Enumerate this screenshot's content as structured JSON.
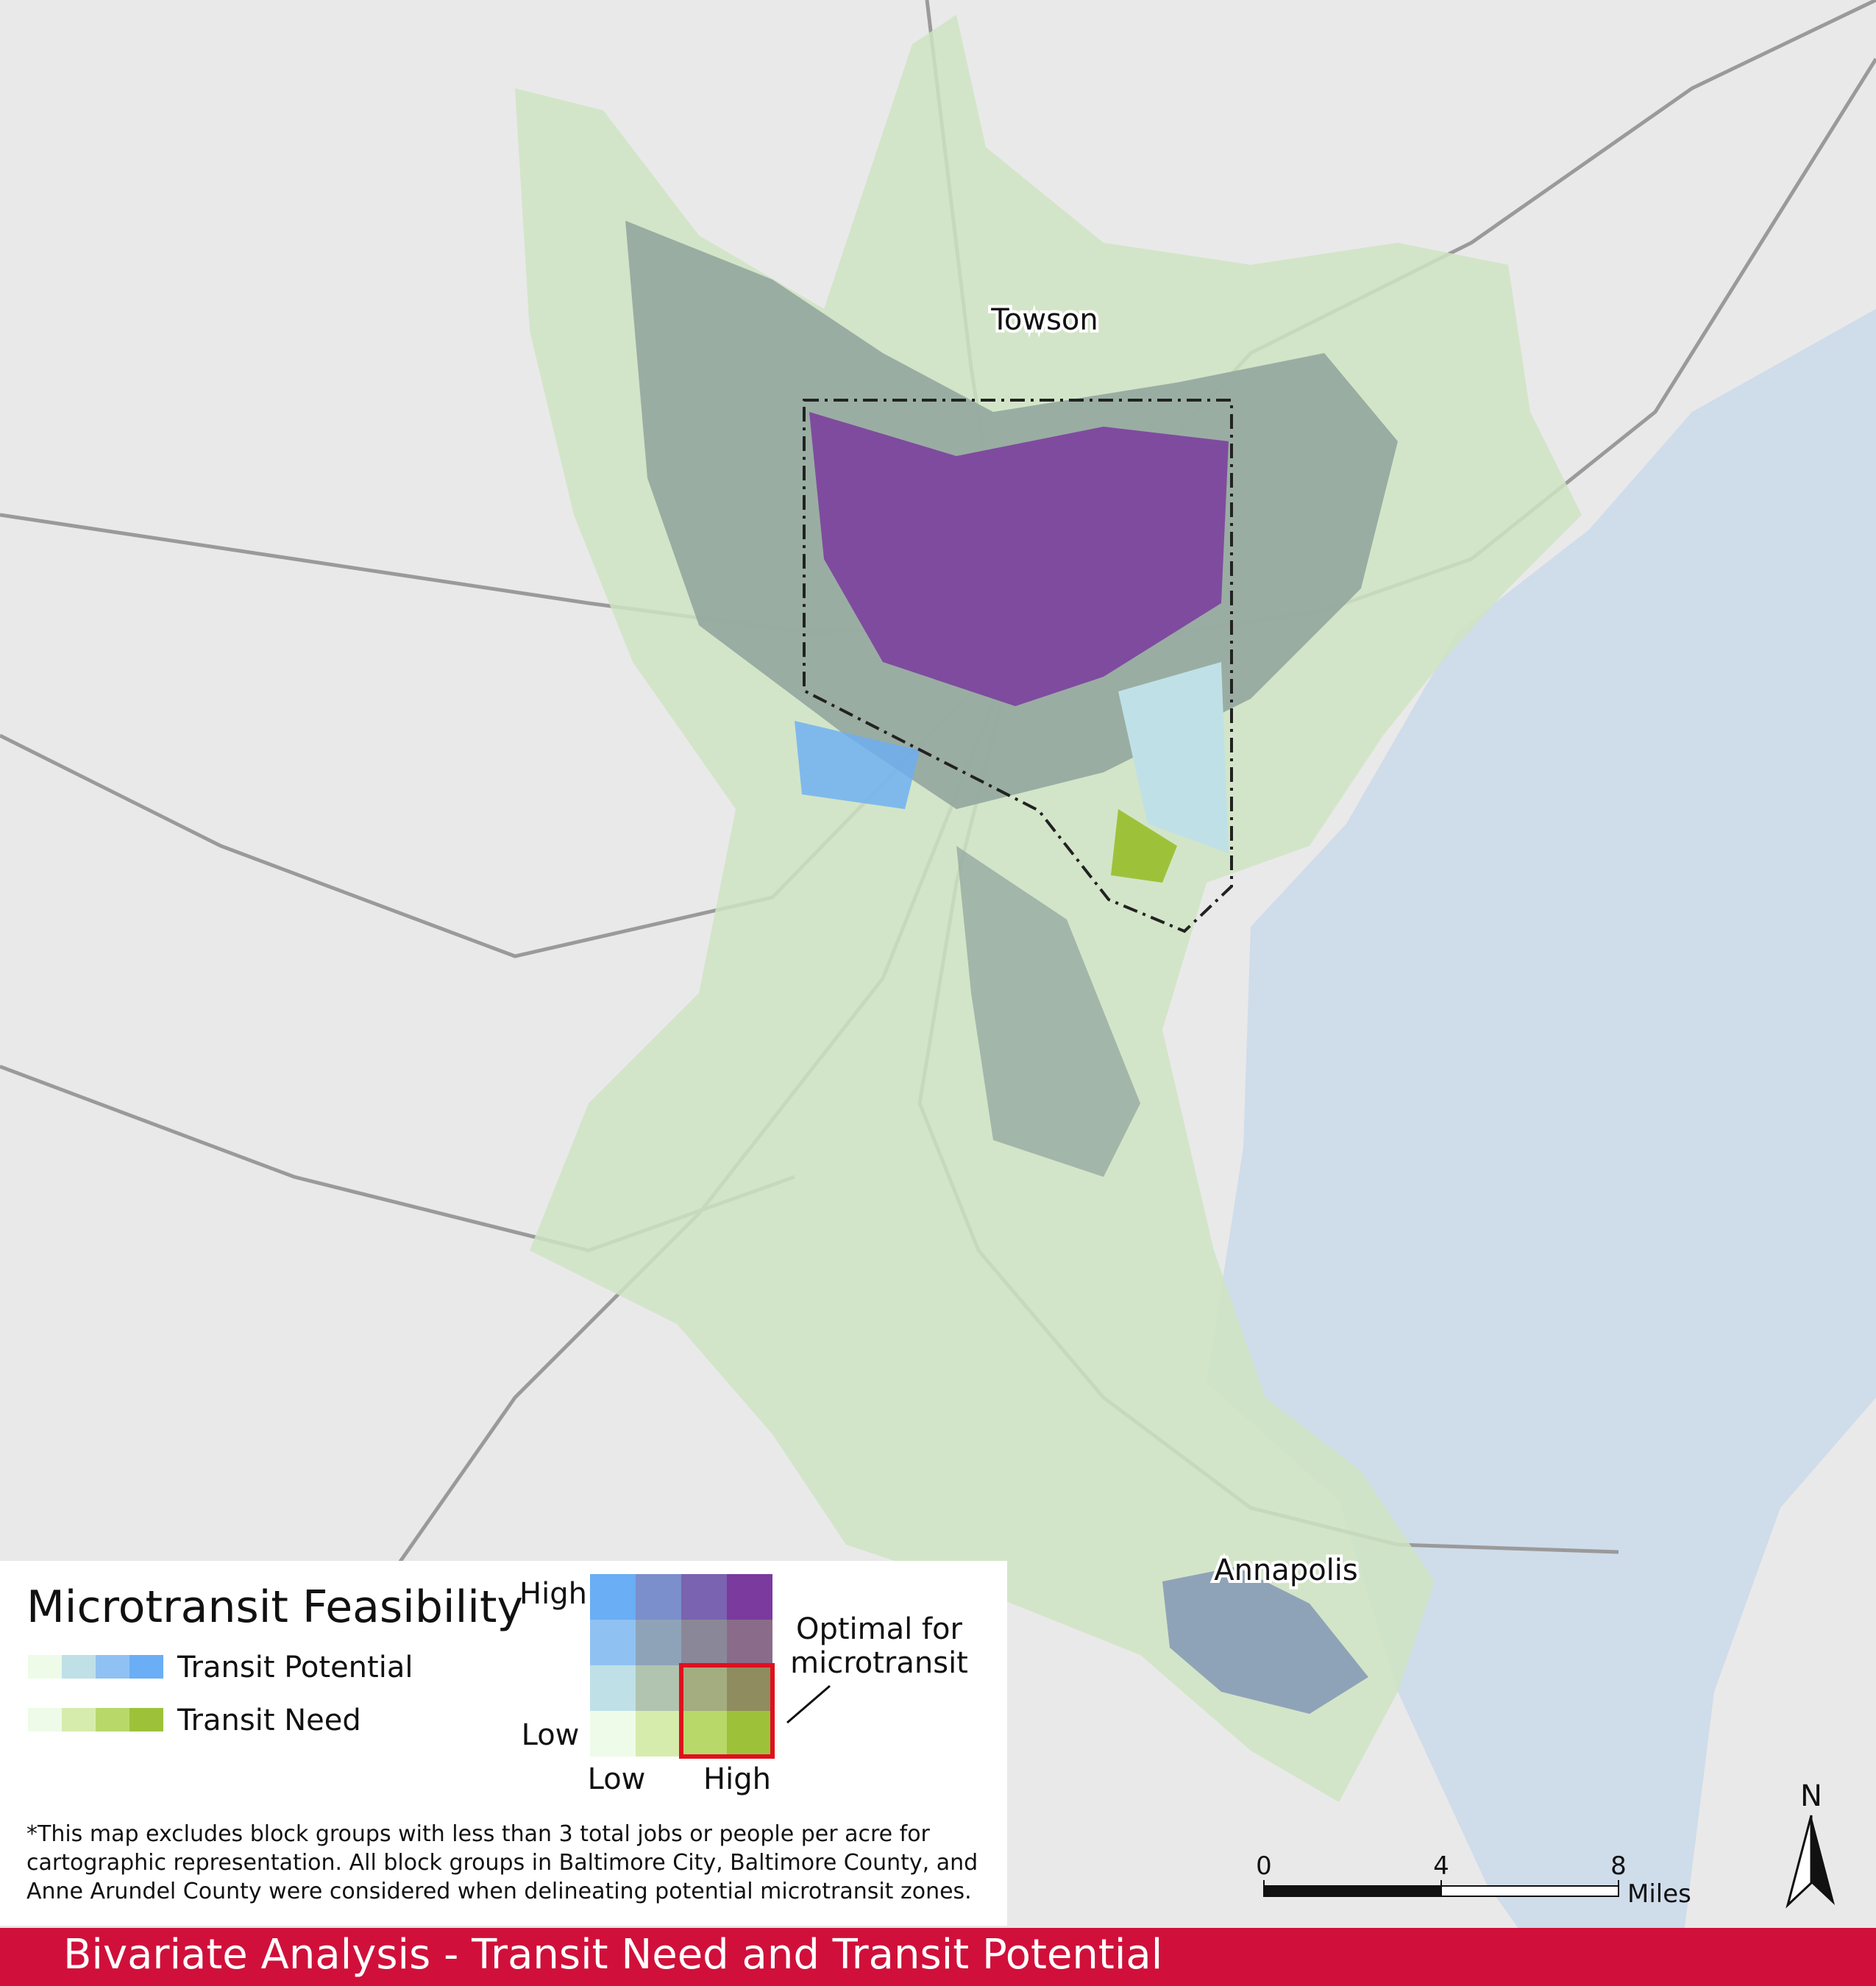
{
  "place_labels": [
    "Towson",
    "Annapolis"
  ],
  "legend": {
    "title": "Microtransit Feasibility",
    "items": [
      {
        "label": "Transit Potential",
        "colors": [
          "#eefbe8",
          "#bfe0e6",
          "#8fc2f2",
          "#6aaef5"
        ]
      },
      {
        "label": "Transit Need",
        "colors": [
          "#eefbe8",
          "#d6ecad",
          "#b8d86a",
          "#9dc23a"
        ]
      }
    ],
    "grid_colors": [
      [
        "#6aaef5",
        "#7a8fcc",
        "#7a63b0",
        "#7a3a9e"
      ],
      [
        "#8fc2f2",
        "#8fa3b8",
        "#8a8898",
        "#8a6c8a"
      ],
      [
        "#bfe0e6",
        "#b0c4b0",
        "#a3ad80",
        "#8f8c60"
      ],
      [
        "#eefbe8",
        "#d6ecad",
        "#b8d86a",
        "#9dc23a"
      ]
    ],
    "y_axis": {
      "high": "High",
      "low": "Low"
    },
    "x_axis": {
      "low": "Low",
      "high": "High"
    },
    "callout": [
      "Optimal for",
      "microtransit"
    ]
  },
  "note": [
    "*This map excludes block groups with less than 3 total jobs or people per acre for",
    "cartographic representation. All block groups in Baltimore City, Baltimore County, and",
    "Anne Arundel County were considered when delineating potential microtransit zones."
  ],
  "scale_bar": {
    "ticks": [
      0,
      4,
      8
    ],
    "unit": "Miles"
  },
  "north": "N",
  "footer": "Bivariate Analysis - Transit Need and Transit Potential"
}
